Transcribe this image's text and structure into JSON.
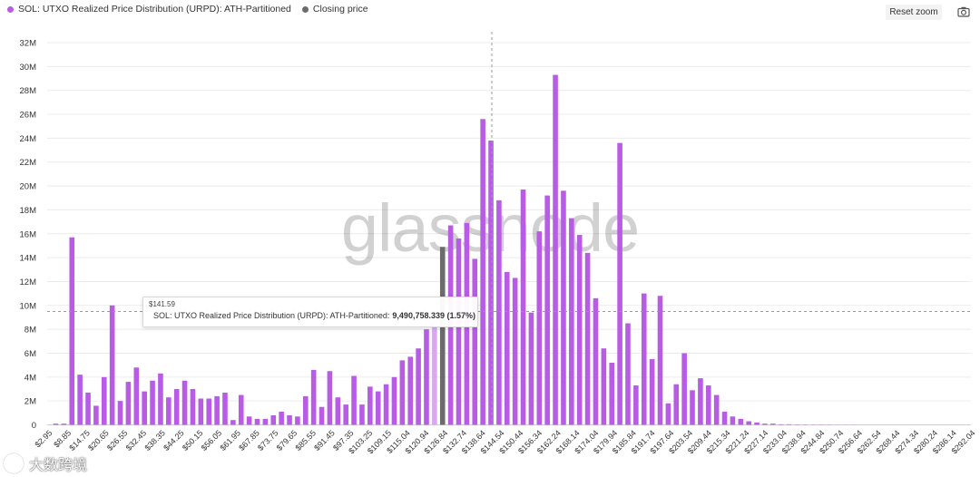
{
  "legend": [
    {
      "label": "SOL: UTXO Realized Price Distribution (URPD): ATH-Partitioned",
      "color": "#b85ce6"
    },
    {
      "label": "Closing price",
      "color": "#6b6b6b"
    }
  ],
  "controls": {
    "reset_zoom": "Reset zoom"
  },
  "icons": {
    "export": "camera-icon"
  },
  "watermark": "glassnode",
  "footer_watermark": "大数跨境",
  "tooltip": {
    "x": "$141.59",
    "series": "SOL: UTXO Realized Price Distribution (URPD): ATH-Partitioned:",
    "value": "9,490,758.339 (1.57%)"
  },
  "chart_data": {
    "type": "bar",
    "title": "",
    "xlabel": "",
    "ylabel": "",
    "ylim": [
      0,
      32000000
    ],
    "y_ticks": [
      "0",
      "2M",
      "4M",
      "6M",
      "8M",
      "10M",
      "12M",
      "14M",
      "16M",
      "18M",
      "20M",
      "22M",
      "24M",
      "26M",
      "28M",
      "30M",
      "32M"
    ],
    "grid": "horizontal",
    "legend_position": "top-left",
    "x_tick_labels": [
      "$2.95",
      "$8.85",
      "$14.75",
      "$20.65",
      "$26.55",
      "$32.45",
      "$38.35",
      "$44.25",
      "$50.15",
      "$56.05",
      "$61.95",
      "$67.85",
      "$73.75",
      "$79.65",
      "$85.55",
      "$91.45",
      "$97.35",
      "$103.25",
      "$109.15",
      "$115.04",
      "$120.94",
      "$126.84",
      "$132.74",
      "$138.64",
      "$144.54",
      "$150.44",
      "$156.34",
      "$162.24",
      "$168.14",
      "$174.04",
      "$179.94",
      "$185.84",
      "$191.74",
      "$197.64",
      "$203.54",
      "$209.44",
      "$215.34",
      "$221.24",
      "$227.14",
      "$233.04",
      "$238.94",
      "$244.84",
      "$250.74",
      "$256.64",
      "$262.54",
      "$268.44",
      "$274.34",
      "$280.24",
      "$286.14",
      "$292.04"
    ],
    "series_values": [
      0.1,
      0.1,
      15.7,
      4.2,
      2.7,
      1.6,
      4.0,
      10.0,
      2.0,
      3.6,
      4.8,
      2.8,
      3.7,
      4.3,
      2.3,
      3.0,
      3.7,
      3.0,
      2.2,
      2.2,
      2.4,
      2.7,
      0.4,
      2.5,
      0.7,
      0.5,
      0.5,
      0.8,
      1.1,
      0.8,
      0.7,
      2.4,
      4.6,
      1.5,
      4.5,
      2.3,
      1.7,
      4.1,
      1.7,
      3.2,
      2.8,
      3.4,
      4.0,
      5.4,
      5.7,
      6.4,
      8.0,
      9.49,
      0,
      16.7,
      15.6,
      16.9,
      13.9,
      25.6,
      23.8,
      18.8,
      12.8,
      12.3,
      19.7,
      9.4,
      16.2,
      19.2,
      29.3,
      19.6,
      17.3,
      15.9,
      14.4,
      10.6,
      6.4,
      5.2,
      23.6,
      8.5,
      3.3,
      11.0,
      5.5,
      10.8,
      1.8,
      3.4,
      6.0,
      2.9,
      3.9,
      3.3,
      2.5,
      1.1,
      0.7,
      0.5,
      0.3,
      0.2,
      0.1,
      0.1,
      0.05,
      0.05,
      0.03,
      0.03,
      0.02,
      0.02,
      0.02,
      0.01,
      0.01,
      0.01
    ],
    "value_unit": "M",
    "highlighted_bar": {
      "x": "$141.59",
      "value": 9490758.339,
      "share": "1.57%"
    },
    "closing_price_bar": {
      "value": 14900000,
      "color": "#6b6b6b"
    },
    "colors": {
      "bar": "#b85ce6",
      "bar_highlight": "#d8a8f2",
      "closing": "#6b6b6b",
      "grid": "#ececec",
      "axis_text": "#333333"
    }
  }
}
